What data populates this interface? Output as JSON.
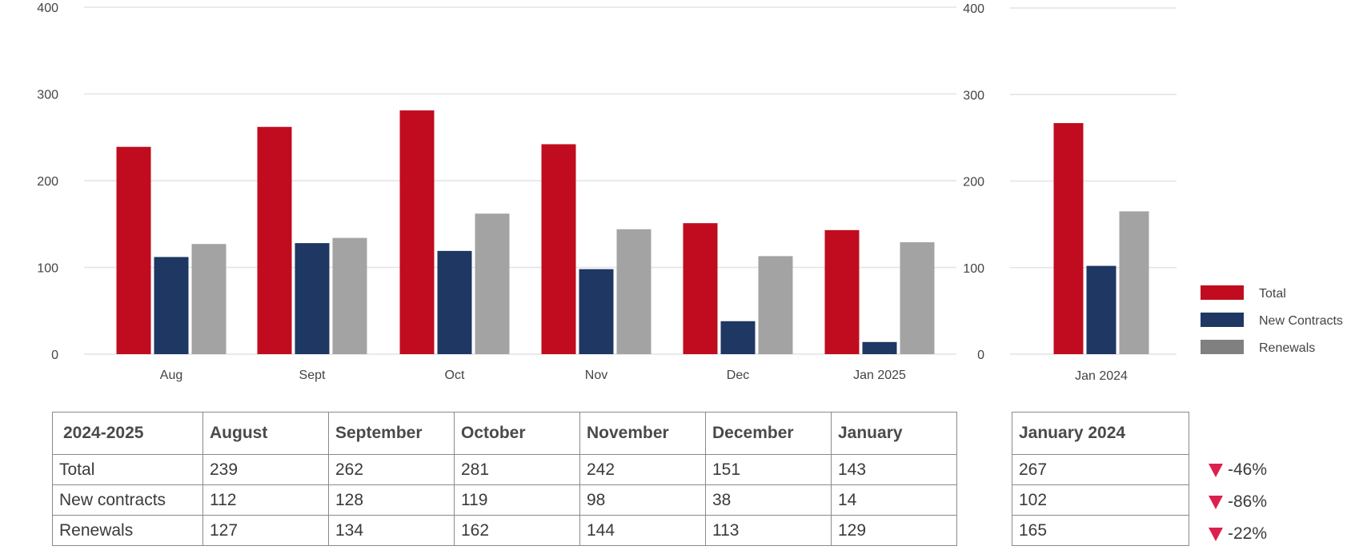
{
  "colors": {
    "total": "#c00c1e",
    "new_contracts": "#1e3763",
    "renewals": "#a3a3a3",
    "renewals_legend": "#808080",
    "grid": "#e3e3e3",
    "down_arrow": "#dc1f4c"
  },
  "chart_data": [
    {
      "type": "bar",
      "categories": [
        "Aug",
        "Sept",
        "Oct",
        "Nov",
        "Dec",
        "Jan 2025"
      ],
      "series": [
        {
          "name": "Total",
          "values": [
            239,
            262,
            281,
            242,
            151,
            143
          ]
        },
        {
          "name": "New Contracts",
          "values": [
            112,
            128,
            119,
            98,
            38,
            14
          ]
        },
        {
          "name": "Renewals",
          "values": [
            127,
            134,
            162,
            144,
            113,
            129
          ]
        }
      ],
      "ylim": [
        0,
        400
      ],
      "yticks": [
        0,
        100,
        200,
        300,
        400
      ],
      "grid": true
    },
    {
      "type": "bar",
      "categories": [
        "Jan 2024"
      ],
      "series": [
        {
          "name": "Total",
          "values": [
            267
          ]
        },
        {
          "name": "New Contracts",
          "values": [
            102
          ]
        },
        {
          "name": "Renewals",
          "values": [
            165
          ]
        }
      ],
      "ylim": [
        0,
        400
      ],
      "yticks": [
        0,
        100,
        200,
        300,
        400
      ],
      "grid": true,
      "legend_position": "right"
    }
  ],
  "legend": [
    {
      "label": "Total",
      "color": "#c00c1e"
    },
    {
      "label": "New Contracts",
      "color": "#1e3763"
    },
    {
      "label": "Renewals",
      "color": "#808080"
    }
  ],
  "main_table": {
    "header": [
      "2024-2025",
      "August",
      "September",
      "October",
      "November",
      "December",
      "January"
    ],
    "rows": [
      {
        "label": "Total",
        "values": [
          "239",
          "262",
          "281",
          "242",
          "151",
          "143"
        ]
      },
      {
        "label": "New contracts",
        "values": [
          "112",
          "128",
          "119",
          "98",
          "38",
          "14"
        ]
      },
      {
        "label": "Renewals",
        "values": [
          "127",
          "134",
          "162",
          "144",
          "113",
          "129"
        ]
      }
    ]
  },
  "side_table": {
    "header": "January 2024",
    "values": [
      "267",
      "102",
      "165"
    ]
  },
  "changes": [
    "-46%",
    "-86%",
    "-22%"
  ]
}
